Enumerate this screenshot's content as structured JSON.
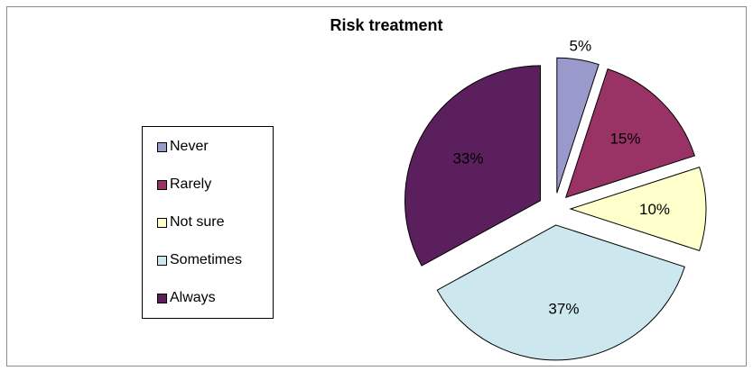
{
  "chart_data": {
    "type": "pie",
    "title": "Risk treatment",
    "slices": [
      {
        "label": "Never",
        "value": 5,
        "data_label": "5%",
        "color": "#9999cc"
      },
      {
        "label": "Rarely",
        "value": 15,
        "data_label": "15%",
        "color": "#993366"
      },
      {
        "label": "Not sure",
        "value": 10,
        "data_label": "10%",
        "color": "#ffffcc"
      },
      {
        "label": "Sometimes",
        "value": 37,
        "data_label": "37%",
        "color": "#cce8ee"
      },
      {
        "label": "Always",
        "value": 33,
        "data_label": "33%",
        "color": "#5c1f5e"
      }
    ],
    "exploded": true,
    "start_angle_deg": 0,
    "direction": "clockwise",
    "legend_position": "left"
  }
}
